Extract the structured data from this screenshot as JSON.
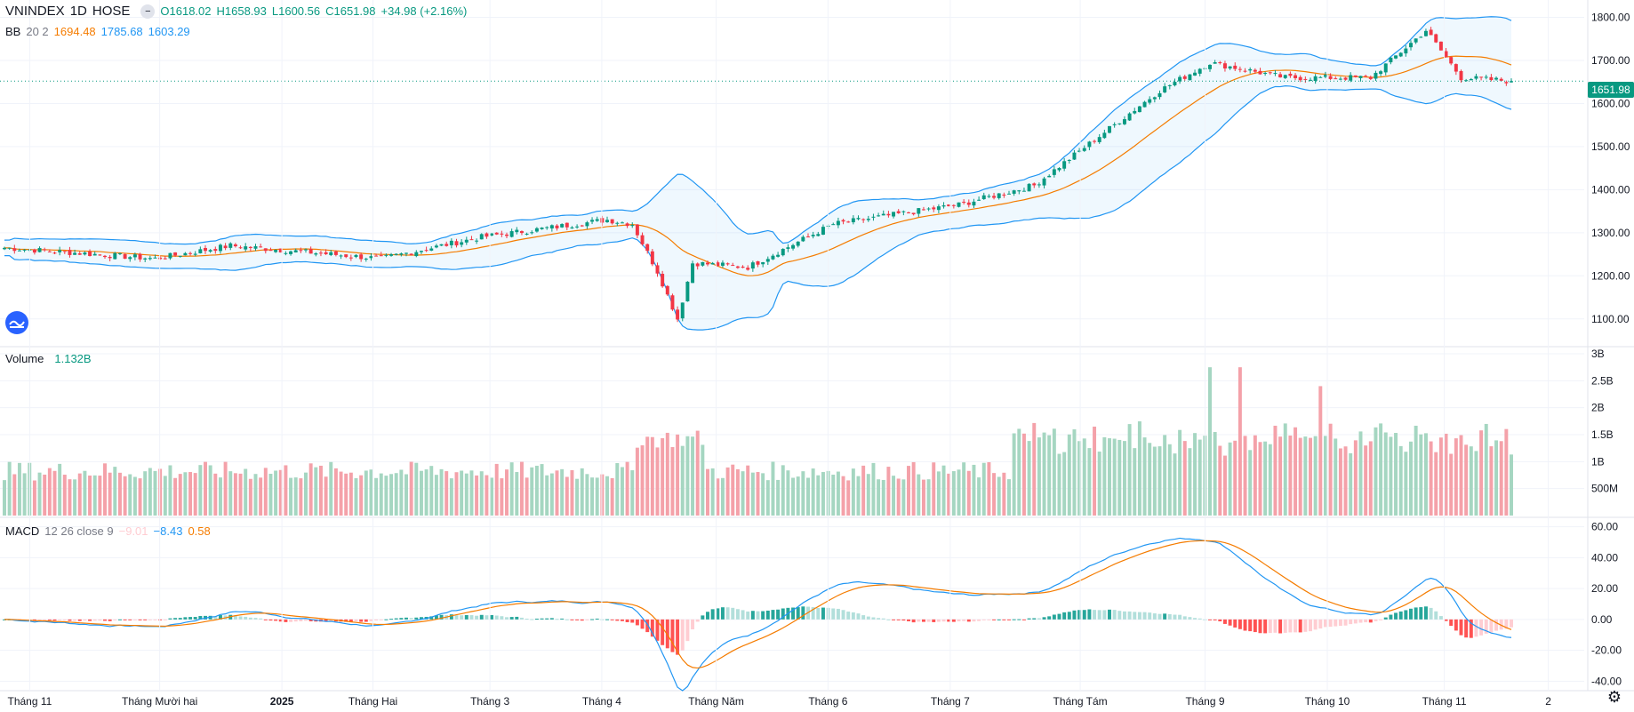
{
  "header": {
    "symbol": "VNINDEX",
    "interval": "1D",
    "exchange": "HOSE",
    "open_label": "O1618.02",
    "high_label": "H1658.93",
    "low_label": "L1600.56",
    "close_label": "C1651.98",
    "change_label": "+34.98 (+2.16%)"
  },
  "indicators": {
    "bb": {
      "name": "BB",
      "params": "20 2",
      "basis": "1694.48",
      "upper": "1785.68",
      "lower": "1603.29"
    },
    "volume": {
      "name": "Volume",
      "value": "1.132B"
    },
    "macd": {
      "name": "MACD",
      "params": "12 26 close 9",
      "hist": "−9.01",
      "macd": "−8.43",
      "signal": "0.58"
    }
  },
  "last_price_tag": "1651.98",
  "colors": {
    "up": "#089981",
    "down": "#f23645",
    "up_volume": "#a5d6c1",
    "down_volume": "#f4a1a9",
    "bb_basis": "#f57c00",
    "bb_band": "#2196f3",
    "macd_line": "#2196f3",
    "signal_line": "#f57c00",
    "hist_up_strong": "#26a69a",
    "hist_up_weak": "#b2dfdb",
    "hist_down_strong": "#ff5252",
    "hist_down_weak": "#ffcdd2"
  },
  "chart_data": [
    {
      "type": "candlestick",
      "title": "VNINDEX 1D HOSE",
      "y_ticks": [
        "1100.00",
        "1200.00",
        "1300.00",
        "1400.00",
        "1500.00",
        "1600.00",
        "1700.00",
        "1800.00"
      ],
      "ylim": [
        1050,
        1830
      ],
      "x_ticks": [
        "Tháng 11",
        "Tháng Mười hai",
        "2025",
        "Tháng Hai",
        "Tháng 3",
        "Tháng 4",
        "Tháng Năm",
        "Tháng 6",
        "Tháng 7",
        "Tháng Tám",
        "Tháng 9",
        "Tháng 10",
        "Tháng 11",
        "2"
      ],
      "series_bb": [
        "basis",
        "upper",
        "lower"
      ],
      "last_close": 1651.98,
      "anchor_prices": [
        {
          "idx": 0,
          "close": 1265
        },
        {
          "idx": 30,
          "close": 1240
        },
        {
          "idx": 45,
          "close": 1270
        },
        {
          "idx": 60,
          "close": 1255
        },
        {
          "idx": 75,
          "close": 1240
        },
        {
          "idx": 95,
          "close": 1290
        },
        {
          "idx": 120,
          "close": 1330
        },
        {
          "idx": 125,
          "close": 1320
        },
        {
          "idx": 130,
          "close": 1210
        },
        {
          "idx": 134,
          "close": 1100
        },
        {
          "idx": 137,
          "close": 1230
        },
        {
          "idx": 148,
          "close": 1220
        },
        {
          "idx": 165,
          "close": 1320
        },
        {
          "idx": 190,
          "close": 1365
        },
        {
          "idx": 205,
          "close": 1410
        },
        {
          "idx": 230,
          "close": 1630
        },
        {
          "idx": 240,
          "close": 1695
        },
        {
          "idx": 255,
          "close": 1660
        },
        {
          "idx": 272,
          "close": 1660
        },
        {
          "idx": 283,
          "close": 1770
        },
        {
          "idx": 290,
          "close": 1660
        },
        {
          "idx": 300,
          "close": 1652
        }
      ]
    },
    {
      "type": "bar",
      "title": "Volume",
      "y_ticks": [
        "500M",
        "1B",
        "1.5B",
        "2B",
        "2.5B",
        "3B"
      ],
      "ylim": [
        0,
        3000000000
      ],
      "last_value": "1.132B"
    },
    {
      "type": "line",
      "title": "MACD",
      "y_ticks": [
        "-40.00",
        "-20.00",
        "0.00",
        "20.00",
        "40.00",
        "60.00"
      ],
      "ylim": [
        -45,
        65
      ],
      "series": [
        "MACD",
        "Signal",
        "Histogram"
      ]
    }
  ]
}
